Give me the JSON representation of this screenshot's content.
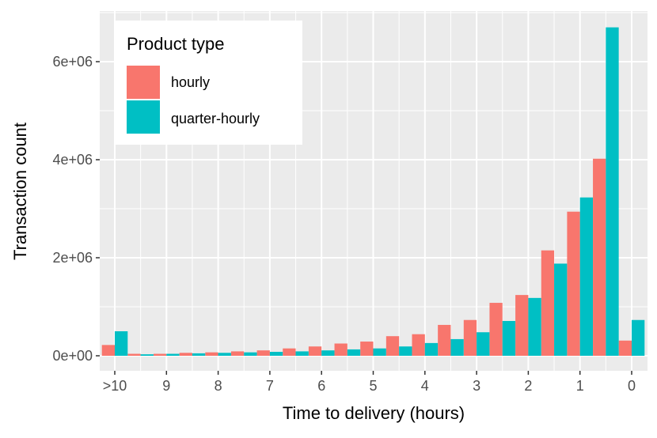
{
  "chart_data": {
    "type": "bar",
    "xlabel": "Time to delivery (hours)",
    "ylabel": "Transaction count",
    "ylim": [
      -300000,
      7100000
    ],
    "yticks": [
      0,
      2000000,
      4000000,
      6000000
    ],
    "ytick_labels": [
      "0e+00",
      "2e+06",
      "4e+06",
      "6e+06"
    ],
    "x_ticks": [
      ">10",
      "9",
      "8",
      "7",
      "6",
      "5",
      "4",
      "3",
      "2",
      "1",
      "0"
    ],
    "bins_per_hour": 2,
    "grid": true,
    "legend_title": "Product type",
    "legend_position": "top-left",
    "series": [
      {
        "name": "hourly",
        "color": "#F8766D",
        "values": [
          220000,
          40000,
          40000,
          60000,
          70000,
          90000,
          110000,
          150000,
          190000,
          250000,
          290000,
          400000,
          440000,
          630000,
          730000,
          1080000,
          1240000,
          2150000,
          2940000,
          4020000,
          310000
        ]
      },
      {
        "name": "quarter-hourly",
        "color": "#00BFC4",
        "values": [
          500000,
          30000,
          40000,
          50000,
          60000,
          70000,
          80000,
          90000,
          110000,
          130000,
          150000,
          190000,
          260000,
          340000,
          480000,
          710000,
          1180000,
          1880000,
          3230000,
          6700000,
          730000
        ]
      }
    ]
  }
}
